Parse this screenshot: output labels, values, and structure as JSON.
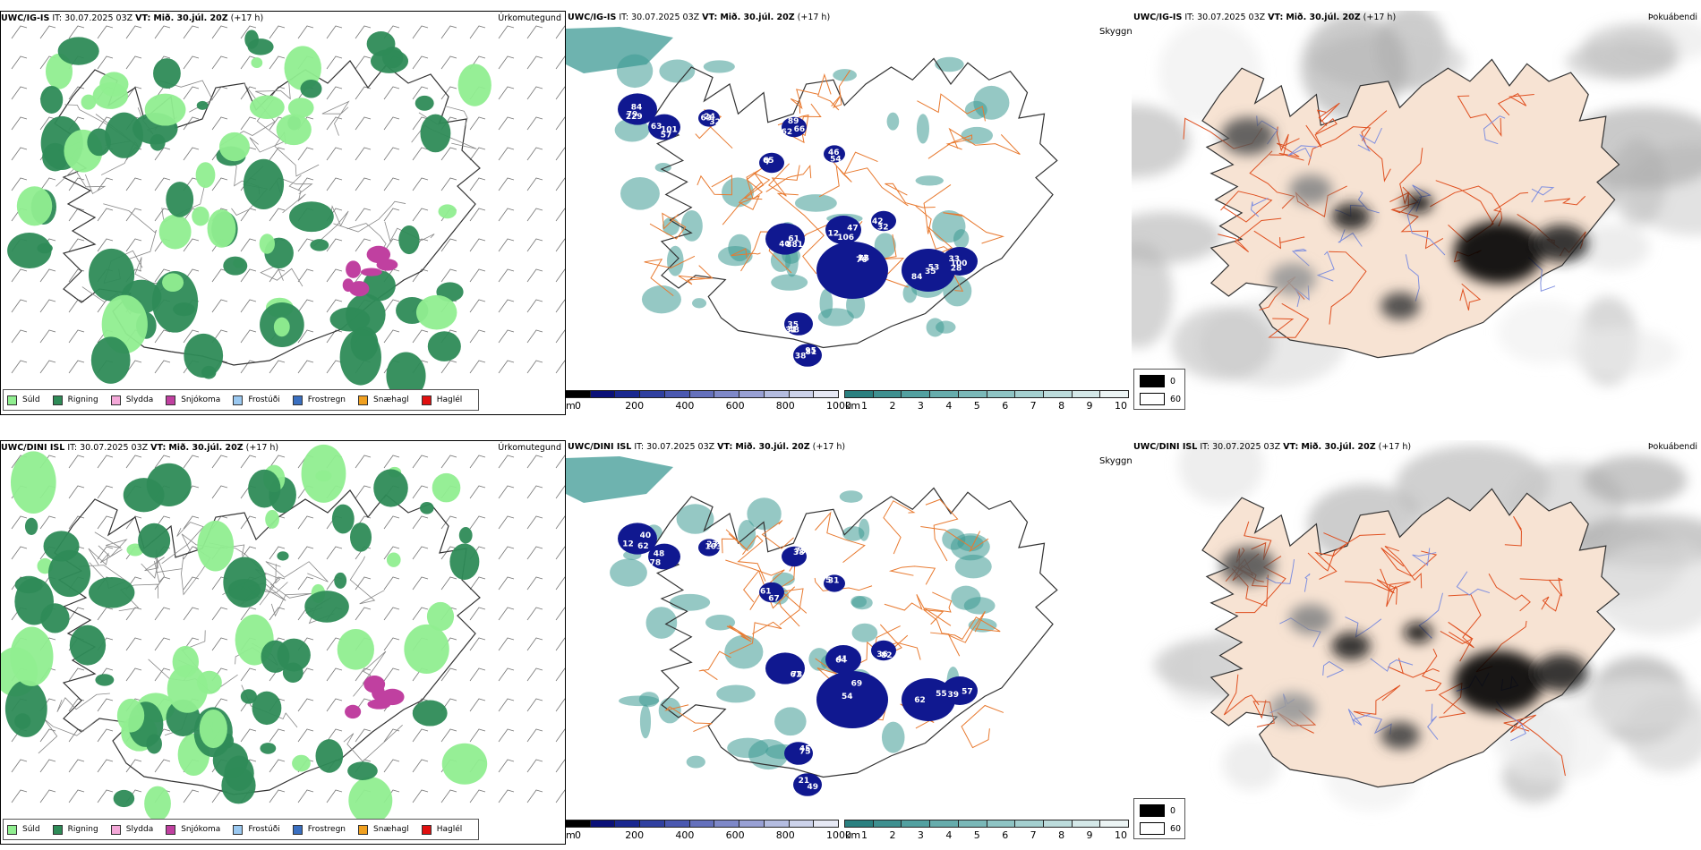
{
  "rows": [
    {
      "model": "UWC/IG-IS",
      "it_label": "IT:",
      "it_value": "30.07.2025 03Z",
      "vt_label": "VT:",
      "vt_value": "Mið. 30.júl. 20Z",
      "lead": "(+17 h)",
      "titles": {
        "precip": "Úrkomutegund",
        "vis": "Skyggni",
        "fog": "Þokuábendi"
      },
      "cloud_labels": [
        "229",
        "63",
        "7",
        "40",
        "106",
        "75",
        "84",
        "100",
        "31",
        "95",
        "32",
        "89",
        "46",
        "32",
        "79",
        "101",
        "65",
        "61",
        "47",
        "12",
        "35",
        "28",
        "48",
        "81",
        "63",
        "62",
        "54",
        "42",
        "84",
        "57",
        "6",
        "881",
        "12",
        "76",
        "53",
        "33",
        "35",
        "38",
        "24",
        "66"
      ]
    },
    {
      "model": "UWC/DINI ISL",
      "it_label": "IT:",
      "it_value": "30.07.2025 03Z",
      "vt_label": "VT:",
      "vt_value": "Mið. 30.júl. 20Z",
      "lead": "(+17 h)",
      "titles": {
        "precip": "Úrkomutegund",
        "vis": "Skyggni",
        "fog": "Þokuábendi"
      },
      "cloud_labels": [
        "12",
        "48",
        "67",
        "61",
        "41",
        "69",
        "62",
        "39",
        "75",
        "21",
        "103",
        "38",
        "31",
        "82",
        "62",
        "78",
        "61",
        "73",
        "64",
        "54",
        "55",
        "57",
        "45",
        "49",
        "23",
        "75",
        "5",
        "36",
        "40"
      ]
    }
  ],
  "precip_legend": [
    {
      "label": "Súld",
      "color": "#90ee90"
    },
    {
      "label": "Rigning",
      "color": "#2e8b57"
    },
    {
      "label": "Slydda",
      "color": "#f4a8d8"
    },
    {
      "label": "Snjókoma",
      "color": "#c040a0"
    },
    {
      "label": "Frostúði",
      "color": "#9ac8f0"
    },
    {
      "label": "Frostregn",
      "color": "#3a6fc0"
    },
    {
      "label": "Snæhagl",
      "color": "#f0a020"
    },
    {
      "label": "Haglél",
      "color": "#e01010"
    }
  ],
  "height_bar": {
    "unit": "m",
    "ticks": [
      "0",
      "200",
      "400",
      "600",
      "800",
      "1000"
    ],
    "colors": [
      "#000000",
      "#0a1078",
      "#1a2890",
      "#3040a0",
      "#4a58b0",
      "#6470bc",
      "#7e88c8",
      "#98a0d4",
      "#b4bce0",
      "#ccd2ea",
      "#e6e8f4"
    ]
  },
  "vis_bar": {
    "unit": "km",
    "ticks": [
      "1",
      "2",
      "3",
      "4",
      "5",
      "6",
      "7",
      "8",
      "9",
      "10"
    ],
    "colors": [
      "#2a8080",
      "#3e9090",
      "#52a0a0",
      "#66acac",
      "#7ab8b8",
      "#8ec4c4",
      "#a4d0d0",
      "#bcdcdc",
      "#d4e8e8",
      "#ecf4f4"
    ]
  },
  "fog_legend": [
    {
      "label": "0",
      "color": "#000000"
    },
    {
      "label": "60",
      "color": "#ffffff"
    }
  ],
  "colors": {
    "land_fog": "#f7e3d3",
    "roads": "#e87a30",
    "rivers": "#8090e0",
    "cloud_low": "#101890",
    "vis_teal": "#3e9a94"
  }
}
